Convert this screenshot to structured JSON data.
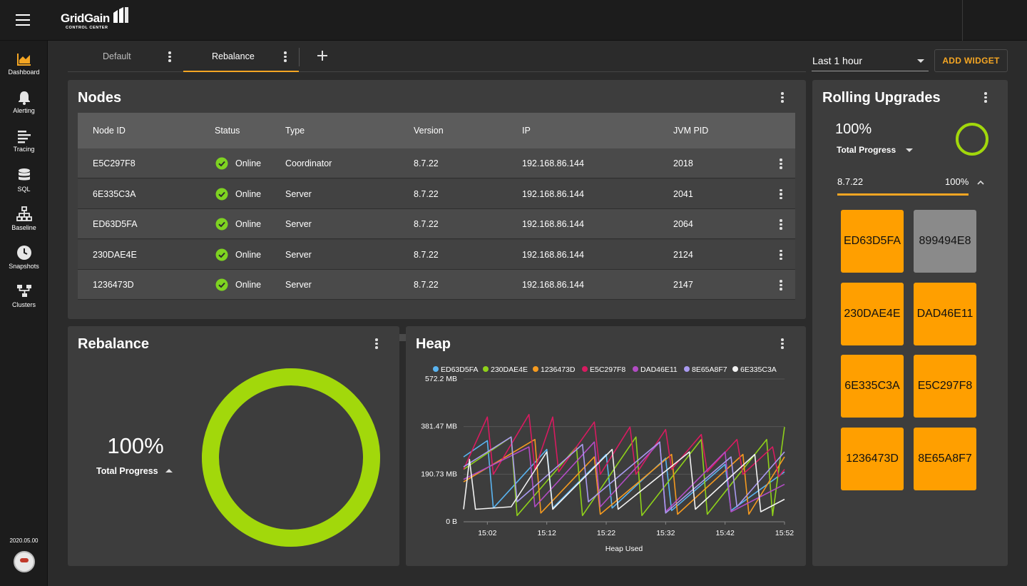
{
  "app": {
    "logo_text": "GridGain",
    "logo_subtitle": "CONTROL CENTER",
    "version": "2020.05.00"
  },
  "sidebar": {
    "items": [
      {
        "label": "Dashboard",
        "icon": "dashboard-icon"
      },
      {
        "label": "Alerting",
        "icon": "bell-icon"
      },
      {
        "label": "Tracing",
        "icon": "tracing-icon"
      },
      {
        "label": "SQL",
        "icon": "database-icon"
      },
      {
        "label": "Baseline",
        "icon": "baseline-icon"
      },
      {
        "label": "Snapshots",
        "icon": "clock-icon"
      },
      {
        "label": "Clusters",
        "icon": "clusters-icon"
      }
    ]
  },
  "tabs": [
    {
      "label": "Default",
      "active": false
    },
    {
      "label": "Rebalance",
      "active": true
    }
  ],
  "toolbar": {
    "time_range": "Last 1 hour",
    "add_widget_label": "ADD WIDGET"
  },
  "nodes": {
    "title": "Nodes",
    "columns": [
      "Node ID",
      "Status",
      "Type",
      "Version",
      "IP",
      "JVM PID"
    ],
    "rows": [
      {
        "id": "E5C297F8",
        "status": "Online",
        "type": "Coordinator",
        "version": "8.7.22",
        "ip": "192.168.86.144",
        "pid": "2018"
      },
      {
        "id": "6E335C3A",
        "status": "Online",
        "type": "Server",
        "version": "8.7.22",
        "ip": "192.168.86.144",
        "pid": "2041"
      },
      {
        "id": "ED63D5FA",
        "status": "Online",
        "type": "Server",
        "version": "8.7.22",
        "ip": "192.168.86.144",
        "pid": "2064"
      },
      {
        "id": "230DAE4E",
        "status": "Online",
        "type": "Server",
        "version": "8.7.22",
        "ip": "192.168.86.144",
        "pid": "2124"
      },
      {
        "id": "1236473D",
        "status": "Online",
        "type": "Server",
        "version": "8.7.22",
        "ip": "192.168.86.144",
        "pid": "2147"
      }
    ]
  },
  "rebalance": {
    "title": "Rebalance",
    "percent": "100%",
    "progress_label": "Total Progress",
    "progress_value": 1.0,
    "ring_color": "#a2d80b"
  },
  "heap": {
    "title": "Heap"
  },
  "rolling_upgrades": {
    "title": "Rolling Upgrades",
    "percent": "100%",
    "progress_label": "Total Progress",
    "version_row": {
      "version": "8.7.22",
      "percent": "100%",
      "progress_value": 1.0
    },
    "nodes": [
      {
        "id": "ED63D5FA",
        "color": "#ff9f00"
      },
      {
        "id": "899494E8",
        "color": "#8a8a8a"
      },
      {
        "id": "230DAE4E",
        "color": "#ff9f00"
      },
      {
        "id": "DAD46E11",
        "color": "#ff9f00"
      },
      {
        "id": "6E335C3A",
        "color": "#ff9f00"
      },
      {
        "id": "E5C297F8",
        "color": "#ff9f00"
      },
      {
        "id": "1236473D",
        "color": "#ff9f00"
      },
      {
        "id": "8E65A8F7",
        "color": "#ff9f00"
      }
    ]
  },
  "chart_data": {
    "type": "line",
    "xlabel": "Heap Used",
    "ylabel": "",
    "x_tick_labels": [
      "15:02",
      "15:12",
      "15:22",
      "15:32",
      "15:42",
      "15:52"
    ],
    "x_ticks_minutes": [
      2,
      12,
      22,
      32,
      42,
      52
    ],
    "xlim_minutes": [
      -2,
      52
    ],
    "y_tick_labels": [
      "0 B",
      "190.73 MB",
      "381.47 MB",
      "572.2 MB"
    ],
    "y_tick_values_mb": [
      0,
      190.73,
      381.47,
      572.2
    ],
    "ylim_mb": [
      0,
      572.2
    ],
    "grid": true,
    "legend_position": "top",
    "series": [
      {
        "name": "ED63D5FA",
        "color": "#5ab4f0",
        "points": [
          [
            -2,
            260
          ],
          [
            2,
            325
          ],
          [
            3,
            55
          ],
          [
            12,
            290
          ],
          [
            13,
            55
          ],
          [
            22,
            270
          ],
          [
            23,
            55
          ],
          [
            32,
            255
          ],
          [
            33,
            45
          ],
          [
            42,
            230
          ],
          [
            43,
            45
          ],
          [
            52,
            200
          ]
        ]
      },
      {
        "name": "230DAE4E",
        "color": "#8fd11a",
        "points": [
          [
            -2,
            210
          ],
          [
            6,
            340
          ],
          [
            7,
            25
          ],
          [
            17,
            300
          ],
          [
            18,
            25
          ],
          [
            27,
            340
          ],
          [
            28,
            25
          ],
          [
            38,
            330
          ],
          [
            39,
            30
          ],
          [
            49,
            330
          ],
          [
            50,
            25
          ],
          [
            52,
            380
          ]
        ]
      },
      {
        "name": "1236473D",
        "color": "#f59a1f",
        "points": [
          [
            -2,
            160
          ],
          [
            10,
            330
          ],
          [
            11,
            35
          ],
          [
            20,
            260
          ],
          [
            21,
            30
          ],
          [
            33,
            270
          ],
          [
            34,
            30
          ],
          [
            45,
            270
          ],
          [
            46,
            30
          ],
          [
            52,
            260
          ]
        ]
      },
      {
        "name": "E5C297F8",
        "color": "#d81b60",
        "points": [
          [
            -2,
            210
          ],
          [
            2,
            420
          ],
          [
            3,
            190
          ],
          [
            9,
            430
          ],
          [
            10,
            210
          ],
          [
            13,
            420
          ],
          [
            14,
            200
          ],
          [
            20,
            400
          ],
          [
            21,
            190
          ],
          [
            26,
            380
          ],
          [
            27,
            190
          ],
          [
            32,
            370
          ],
          [
            33,
            210
          ],
          [
            38,
            350
          ],
          [
            39,
            200
          ],
          [
            44,
            330
          ],
          [
            45,
            190
          ],
          [
            50,
            300
          ],
          [
            51,
            180
          ],
          [
            52,
            210
          ]
        ]
      },
      {
        "name": "DAD46E11",
        "color": "#b24cc4",
        "points": [
          [
            -2,
            170
          ],
          [
            9,
            300
          ],
          [
            10,
            60
          ],
          [
            20,
            320
          ],
          [
            21,
            60
          ],
          [
            31,
            320
          ],
          [
            32,
            40
          ],
          [
            42,
            280
          ],
          [
            43,
            40
          ],
          [
            52,
            150
          ]
        ]
      },
      {
        "name": "8E65A8F7",
        "color": "#a99af0",
        "points": [
          [
            -2,
            220
          ],
          [
            6,
            340
          ],
          [
            7,
            80
          ],
          [
            18,
            310
          ],
          [
            19,
            80
          ],
          [
            31,
            320
          ],
          [
            32,
            35
          ],
          [
            43,
            260
          ],
          [
            44,
            60
          ],
          [
            52,
            280
          ]
        ]
      },
      {
        "name": "6E335C3A",
        "color": "#f2f2f2",
        "points": [
          [
            -2,
            50
          ],
          [
            -1,
            250
          ],
          [
            0,
            50
          ],
          [
            6,
            60
          ],
          [
            12,
            280
          ],
          [
            13,
            50
          ],
          [
            23,
            290
          ],
          [
            24,
            50
          ],
          [
            36,
            280
          ],
          [
            37,
            50
          ],
          [
            47,
            270
          ],
          [
            48,
            40
          ],
          [
            52,
            90
          ]
        ]
      }
    ]
  }
}
